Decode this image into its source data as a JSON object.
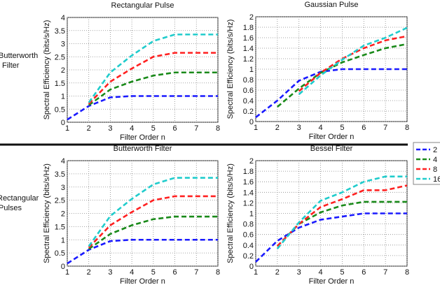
{
  "row_labels": [
    [
      "Butterworth",
      "Filter"
    ],
    [
      "Rectangular",
      "Pulses"
    ]
  ],
  "legend": {
    "entries": [
      "2",
      "4",
      "8",
      "16"
    ],
    "colors": [
      "#1a1aff",
      "#1a8a1a",
      "#ff2020",
      "#20cccc"
    ]
  },
  "chart_data": [
    {
      "type": "line",
      "title": "Rectangular Pulse",
      "xlabel": "Filter Order n",
      "ylabel": "Spectral Efficiency (bits/s/Hz)",
      "xlim": [
        1,
        8
      ],
      "ylim": [
        0,
        4
      ],
      "yticks": [
        "0",
        "0.5",
        "1",
        "1.5",
        "2",
        "2.5",
        "3",
        "3.5",
        "4"
      ],
      "xticks": [
        "1",
        "2",
        "3",
        "4",
        "5",
        "6",
        "7",
        "8"
      ],
      "grid": true,
      "series": [
        {
          "name": "2",
          "x": [
            1,
            2,
            3,
            4,
            5,
            6,
            7,
            8
          ],
          "values": [
            0.1,
            0.62,
            0.95,
            1,
            1,
            1,
            1,
            1
          ]
        },
        {
          "name": "4",
          "x": [
            2,
            3,
            4,
            5,
            6,
            7,
            8
          ],
          "values": [
            0.65,
            1.25,
            1.55,
            1.78,
            1.9,
            1.9,
            1.9
          ]
        },
        {
          "name": "8",
          "x": [
            2,
            3,
            4,
            5,
            6,
            7,
            8
          ],
          "values": [
            0.7,
            1.55,
            2.05,
            2.5,
            2.65,
            2.65,
            2.65
          ]
        },
        {
          "name": "16",
          "x": [
            2,
            3,
            4,
            5,
            6,
            7,
            8
          ],
          "values": [
            0.75,
            1.9,
            2.55,
            3.1,
            3.35,
            3.35,
            3.35
          ]
        }
      ]
    },
    {
      "type": "line",
      "title": "Gaussian Pulse",
      "xlabel": "Filter Order n",
      "ylabel": "Spectral Efficiency (bits/s/Hz)",
      "xlim": [
        1,
        8
      ],
      "ylim": [
        0,
        2
      ],
      "yticks": [
        "0",
        "0.2",
        "0.4",
        "0.6",
        "0.8",
        "1",
        "1.2",
        "1.4",
        "1.6",
        "1.8",
        "2"
      ],
      "xticks": [
        "1",
        "2",
        "3",
        "4",
        "5",
        "6",
        "7",
        "8"
      ],
      "grid": true,
      "series": [
        {
          "name": "2",
          "x": [
            1,
            2,
            3,
            4,
            5,
            6,
            7,
            8
          ],
          "values": [
            0.08,
            0.4,
            0.78,
            0.95,
            1,
            1,
            1,
            1
          ]
        },
        {
          "name": "4",
          "x": [
            2,
            3,
            4,
            5,
            6,
            7,
            8
          ],
          "values": [
            0.28,
            0.63,
            0.93,
            1.13,
            1.27,
            1.4,
            1.48
          ]
        },
        {
          "name": "8",
          "x": [
            3,
            4,
            5,
            6,
            7,
            8
          ],
          "values": [
            0.58,
            0.93,
            1.2,
            1.4,
            1.55,
            1.63
          ]
        },
        {
          "name": "16",
          "x": [
            3,
            4,
            5,
            6,
            7,
            8
          ],
          "values": [
            0.52,
            0.88,
            1.18,
            1.45,
            1.6,
            1.79
          ]
        }
      ]
    },
    {
      "type": "line",
      "title": "Butterworth Filter",
      "xlabel": "Filter Order n",
      "ylabel": "Spectral Efficiency (bits/s/Hz)",
      "xlim": [
        1,
        8
      ],
      "ylim": [
        0,
        4
      ],
      "yticks": [
        "0",
        "0.5",
        "1",
        "1.5",
        "2",
        "2.5",
        "3",
        "3.5",
        "4"
      ],
      "xticks": [
        "1",
        "2",
        "3",
        "4",
        "5",
        "6",
        "7",
        "8"
      ],
      "grid": true,
      "series": [
        {
          "name": "2",
          "x": [
            1,
            2,
            3,
            4,
            5,
            6,
            7,
            8
          ],
          "values": [
            0.1,
            0.62,
            0.95,
            1,
            1,
            1,
            1,
            1
          ]
        },
        {
          "name": "4",
          "x": [
            2,
            3,
            4,
            5,
            6,
            7,
            8
          ],
          "values": [
            0.65,
            1.22,
            1.55,
            1.78,
            1.88,
            1.88,
            1.88
          ]
        },
        {
          "name": "8",
          "x": [
            2,
            3,
            4,
            5,
            6,
            7,
            8
          ],
          "values": [
            0.7,
            1.55,
            2.05,
            2.5,
            2.65,
            2.65,
            2.65
          ]
        },
        {
          "name": "16",
          "x": [
            2,
            3,
            4,
            5,
            6,
            7,
            8
          ],
          "values": [
            0.75,
            1.9,
            2.55,
            3.1,
            3.35,
            3.35,
            3.35
          ]
        }
      ]
    },
    {
      "type": "line",
      "title": "Bessel Filter",
      "xlabel": "Filter Order n",
      "ylabel": "Spectral Efficiency (bits/s/Hz)",
      "xlim": [
        1,
        8
      ],
      "ylim": [
        0,
        2
      ],
      "yticks": [
        "0",
        "0.2",
        "0.4",
        "0.6",
        "0.8",
        "1",
        "1.2",
        "1.4",
        "1.6",
        "1.8",
        "2"
      ],
      "xticks": [
        "1",
        "2",
        "3",
        "4",
        "5",
        "6",
        "7",
        "8"
      ],
      "grid": true,
      "series": [
        {
          "name": "2",
          "x": [
            1,
            2,
            3,
            4,
            5,
            6,
            7,
            8
          ],
          "values": [
            0.08,
            0.48,
            0.73,
            0.88,
            0.94,
            1,
            1,
            1
          ]
        },
        {
          "name": "4",
          "x": [
            2,
            3,
            4,
            5,
            6,
            7,
            8
          ],
          "values": [
            0.38,
            0.8,
            1.02,
            1.15,
            1.22,
            1.22,
            1.22
          ]
        },
        {
          "name": "8",
          "x": [
            2,
            3,
            4,
            5,
            6,
            7,
            8
          ],
          "values": [
            0.38,
            0.8,
            1.12,
            1.27,
            1.44,
            1.44,
            1.53
          ]
        },
        {
          "name": "16",
          "x": [
            2,
            3,
            4,
            5,
            6,
            7,
            8
          ],
          "values": [
            0.33,
            0.83,
            1.24,
            1.4,
            1.6,
            1.7,
            1.7
          ]
        }
      ]
    }
  ]
}
